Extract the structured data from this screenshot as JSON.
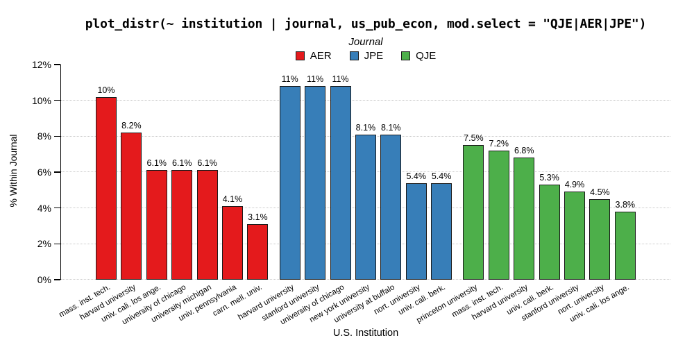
{
  "title": "plot_distr(~ institution | journal, us_pub_econ, mod.select = \"QJE|AER|JPE\")",
  "legend": {
    "title": "Journal",
    "entries": [
      {
        "label": "AER",
        "color": "#E41A1C"
      },
      {
        "label": "JPE",
        "color": "#377EB8"
      },
      {
        "label": "QJE",
        "color": "#4DAF4A"
      }
    ]
  },
  "axes": {
    "y_label": "% Within Journal",
    "x_label": "U.S. Institution",
    "y_tick_labels": [
      "0%",
      "2%",
      "4%",
      "6%",
      "8%",
      "10%",
      "12%"
    ]
  },
  "chart_data": {
    "type": "bar",
    "title": "plot_distr(~ institution | journal, us_pub_econ, mod.select = \"QJE|AER|JPE\")",
    "xlabel": "U.S. Institution",
    "ylabel": "% Within Journal",
    "ylim": [
      0,
      12
    ],
    "ytick_step": 2,
    "grid": "horizontal dotted lines at 0%-10%",
    "legend_title": "Journal",
    "legend_position": "top-center",
    "bar_outline": "#1a1a1a",
    "series": [
      {
        "name": "AER",
        "color": "#E41A1C",
        "points": [
          {
            "institution": "mass. inst. tech.",
            "value": 10.2,
            "label": "10%"
          },
          {
            "institution": "harvard university",
            "value": 8.2,
            "label": "8.2%"
          },
          {
            "institution": "univ. cali. los ange.",
            "value": 6.1,
            "label": "6.1%"
          },
          {
            "institution": "university of chicago",
            "value": 6.1,
            "label": "6.1%"
          },
          {
            "institution": "university michigan",
            "value": 6.1,
            "label": "6.1%"
          },
          {
            "institution": "univ. pennsylvania",
            "value": 4.1,
            "label": "4.1%"
          },
          {
            "institution": "carn. mell. univ.",
            "value": 3.1,
            "label": "3.1%"
          }
        ]
      },
      {
        "name": "JPE",
        "color": "#377EB8",
        "points": [
          {
            "institution": "harvard university",
            "value": 10.8,
            "label": "11%"
          },
          {
            "institution": "stanford university",
            "value": 10.8,
            "label": "11%"
          },
          {
            "institution": "university of chicago",
            "value": 10.8,
            "label": "11%"
          },
          {
            "institution": "new york university",
            "value": 8.1,
            "label": "8.1%"
          },
          {
            "institution": "university at buffalo",
            "value": 8.1,
            "label": "8.1%"
          },
          {
            "institution": "nort. university",
            "value": 5.4,
            "label": "5.4%"
          },
          {
            "institution": "univ. cali. berk.",
            "value": 5.4,
            "label": "5.4%"
          }
        ]
      },
      {
        "name": "QJE",
        "color": "#4DAF4A",
        "points": [
          {
            "institution": "princeton university",
            "value": 7.5,
            "label": "7.5%"
          },
          {
            "institution": "mass. inst. tech.",
            "value": 7.2,
            "label": "7.2%"
          },
          {
            "institution": "harvard university",
            "value": 6.8,
            "label": "6.8%"
          },
          {
            "institution": "univ. cali. berk.",
            "value": 5.3,
            "label": "5.3%"
          },
          {
            "institution": "stanford university",
            "value": 4.9,
            "label": "4.9%"
          },
          {
            "institution": "nort. university",
            "value": 4.5,
            "label": "4.5%"
          },
          {
            "institution": "univ. cali. los ange.",
            "value": 3.8,
            "label": "3.8%"
          }
        ]
      }
    ]
  }
}
